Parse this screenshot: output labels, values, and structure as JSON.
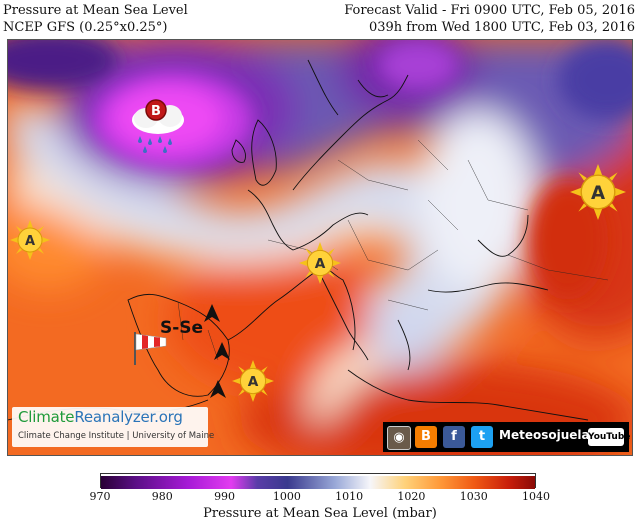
{
  "header": {
    "title_left": "Pressure at Mean Sea Level",
    "model_left": "NCEP GFS (0.25°x0.25°)",
    "valid_right": "Forecast Valid - Fri 0900 UTC, Feb 05, 2016",
    "run_right": "039h from Wed 1800 UTC, Feb 03, 2016"
  },
  "map": {
    "pressure_systems": [
      {
        "label": "B",
        "type": "low",
        "icon": "low-pressure-rain-cloud-icon"
      },
      {
        "label": "A",
        "type": "high",
        "icon": "high-pressure-sun-icon"
      },
      {
        "label": "A",
        "type": "high",
        "icon": "high-pressure-sun-icon"
      },
      {
        "label": "A",
        "type": "high",
        "icon": "high-pressure-sun-icon"
      },
      {
        "label": "A",
        "type": "high",
        "icon": "high-pressure-sun-icon"
      }
    ],
    "wind_label": "S-Se",
    "wind_icon": "windsock-icon"
  },
  "branding": {
    "cr_part1": "Climate",
    "cr_part2": "Reanalyzer.org",
    "cr_sub": "Climate Change Institute | University of Maine",
    "social_name": "Meteosojuela",
    "social_icons": [
      "instagram-icon",
      "blogger-icon",
      "facebook-icon",
      "twitter-icon",
      "youtube-icon"
    ],
    "youtube_label": "YouTube"
  },
  "colorbar": {
    "ticks": [
      "970",
      "980",
      "990",
      "1000",
      "1010",
      "1020",
      "1030",
      "1040"
    ],
    "label": "Pressure at Mean Sea Level (mbar)",
    "colors": [
      "#2a0036",
      "#5b0f86",
      "#a61ad6",
      "#e23bf0",
      "#5a3ca8",
      "#3a3a8e",
      "#9aa9d8",
      "#f6f6fa",
      "#ffd27a",
      "#ff9a3a",
      "#f05a14",
      "#c81e0a",
      "#8a0a06"
    ]
  }
}
